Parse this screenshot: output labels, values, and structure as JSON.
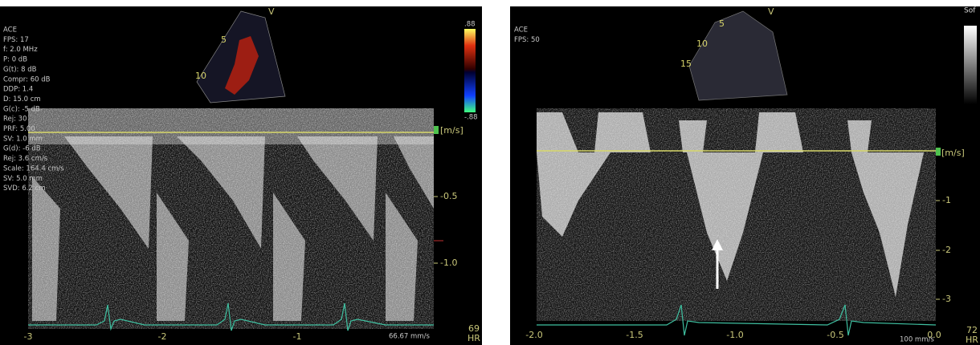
{
  "left_panel": {
    "params": [
      "ACE",
      "FPS: 17",
      "f: 2.0 MHz",
      "P: 0 dB",
      "G(t): 8 dB",
      "Compr: 60 dB",
      "DDP: 1.4",
      "D: 15.0 cm",
      "G(c): -5 dB",
      "Rej: 30",
      "PRF: 5.00",
      "SV: 1.0 mm",
      "G(d): -6 dB",
      "Rej: 3.6 cm/s",
      "Scale: 164.4 cm/s",
      "SV: 5.0 mm",
      "SVD: 6.2 cm"
    ],
    "sector_mark": "V",
    "depth_labels": [
      "5",
      "10"
    ],
    "color_scale": {
      "max": ".88",
      "min": "-.88"
    },
    "unit": "[m/s]",
    "velocity_labels": [
      "-0.5",
      "-1.0"
    ],
    "time_labels": [
      "-3",
      "-2",
      "-1"
    ],
    "sweep_speed": "66.67 mm/s",
    "heart_rate": "69",
    "heart_rate_label": "HR"
  },
  "right_panel": {
    "params": [
      "ACE",
      "FPS: 50"
    ],
    "sector_mark": "V",
    "depth_labels": [
      "5",
      "10",
      "15"
    ],
    "gray_scale_label": "Sof",
    "unit": "[m/s]",
    "velocity_labels": [
      "-1",
      "-2",
      "-3"
    ],
    "time_labels": [
      "-2.0",
      "-1.5",
      "-1.0",
      "-0.5",
      "0.0"
    ],
    "sweep_speed": "100 mm/s",
    "heart_rate": "72",
    "heart_rate_label": "HR"
  }
}
